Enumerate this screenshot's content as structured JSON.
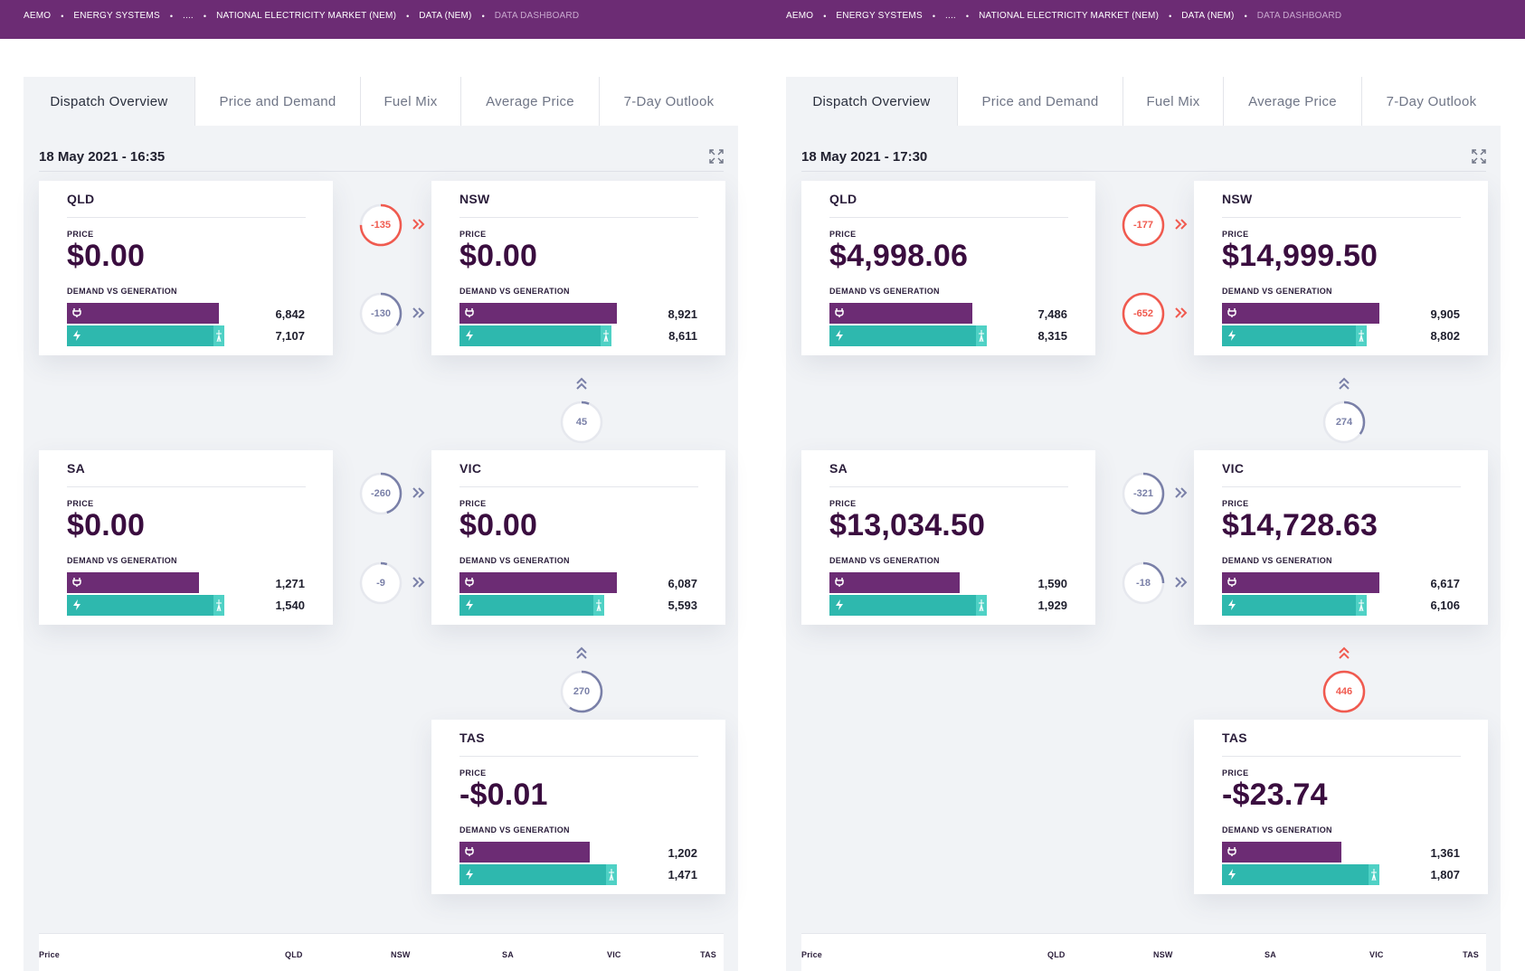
{
  "colors": {
    "brand": "#6c2c74",
    "generation": "#2eb8ae",
    "flow_normal": "#7a80a8",
    "flow_hot": "#f05a4f"
  },
  "breadcrumb": [
    "AEMO",
    "ENERGY SYSTEMS",
    "....",
    "NATIONAL ELECTRICITY MARKET (NEM)",
    "DATA (NEM)",
    "DATA DASHBOARD"
  ],
  "tabs": [
    "Dispatch Overview",
    "Price and Demand",
    "Fuel Mix",
    "Average Price",
    "7-Day Outlook"
  ],
  "labels": {
    "price": "PRICE",
    "demand_vs_generation": "DEMAND VS GENERATION"
  },
  "table_headers": [
    "Price",
    "QLD",
    "NSW",
    "SA",
    "VIC",
    "TAS"
  ],
  "panels": [
    {
      "timestamp": "18 May 2021 - 16:35",
      "regions": [
        {
          "name": "QLD",
          "price": "$0.00",
          "demand": "6,842",
          "generation": "7,107",
          "demand_fraction": 0.84,
          "generation_fraction": 0.87
        },
        {
          "name": "NSW",
          "price": "$0.00",
          "demand": "8,921",
          "generation": "8,611",
          "demand_fraction": 0.87,
          "generation_fraction": 0.84
        },
        {
          "name": "SA",
          "price": "$0.00",
          "demand": "1,271",
          "generation": "1,540",
          "demand_fraction": 0.73,
          "generation_fraction": 0.87
        },
        {
          "name": "VIC",
          "price": "$0.00",
          "demand": "6,087",
          "generation": "5,593",
          "demand_fraction": 0.87,
          "generation_fraction": 0.8
        },
        {
          "name": "TAS",
          "price": "-$0.01",
          "demand": "1,202",
          "generation": "1,471",
          "demand_fraction": 0.72,
          "generation_fraction": 0.87
        }
      ],
      "flows": [
        {
          "from": "QLD",
          "to": "NSW",
          "value": "-135",
          "hot": true,
          "fraction": 0.75
        },
        {
          "from": "QLD",
          "to": "NSW",
          "value": "-130",
          "hot": false,
          "fraction": 0.35
        },
        {
          "from": "VIC",
          "to": "NSW",
          "value": "45",
          "hot": false,
          "fraction": 0.06
        },
        {
          "from": "SA",
          "to": "VIC",
          "value": "-260",
          "hot": false,
          "fraction": 0.45
        },
        {
          "from": "SA",
          "to": "VIC",
          "value": "-9",
          "hot": false,
          "fraction": 0.05
        },
        {
          "from": "TAS",
          "to": "VIC",
          "value": "270",
          "hot": false,
          "fraction": 0.6
        }
      ]
    },
    {
      "timestamp": "18 May 2021 - 17:30",
      "regions": [
        {
          "name": "QLD",
          "price": "$4,998.06",
          "demand": "7,486",
          "generation": "8,315",
          "demand_fraction": 0.79,
          "generation_fraction": 0.87
        },
        {
          "name": "NSW",
          "price": "$14,999.50",
          "demand": "9,905",
          "generation": "8,802",
          "demand_fraction": 0.87,
          "generation_fraction": 0.8
        },
        {
          "name": "SA",
          "price": "$13,034.50",
          "demand": "1,590",
          "generation": "1,929",
          "demand_fraction": 0.72,
          "generation_fraction": 0.87
        },
        {
          "name": "VIC",
          "price": "$14,728.63",
          "demand": "6,617",
          "generation": "6,106",
          "demand_fraction": 0.87,
          "generation_fraction": 0.8
        },
        {
          "name": "TAS",
          "price": "-$23.74",
          "demand": "1,361",
          "generation": "1,807",
          "demand_fraction": 0.66,
          "generation_fraction": 0.87
        }
      ],
      "flows": [
        {
          "from": "QLD",
          "to": "NSW",
          "value": "-177",
          "hot": true,
          "fraction": 1.0
        },
        {
          "from": "QLD",
          "to": "NSW",
          "value": "-652",
          "hot": true,
          "fraction": 1.0
        },
        {
          "from": "VIC",
          "to": "NSW",
          "value": "274",
          "hot": false,
          "fraction": 0.35
        },
        {
          "from": "SA",
          "to": "VIC",
          "value": "-321",
          "hot": false,
          "fraction": 0.6
        },
        {
          "from": "SA",
          "to": "VIC",
          "value": "-18",
          "hot": false,
          "fraction": 0.25
        },
        {
          "from": "TAS",
          "to": "VIC",
          "value": "446",
          "hot": true,
          "fraction": 1.0
        }
      ]
    }
  ]
}
